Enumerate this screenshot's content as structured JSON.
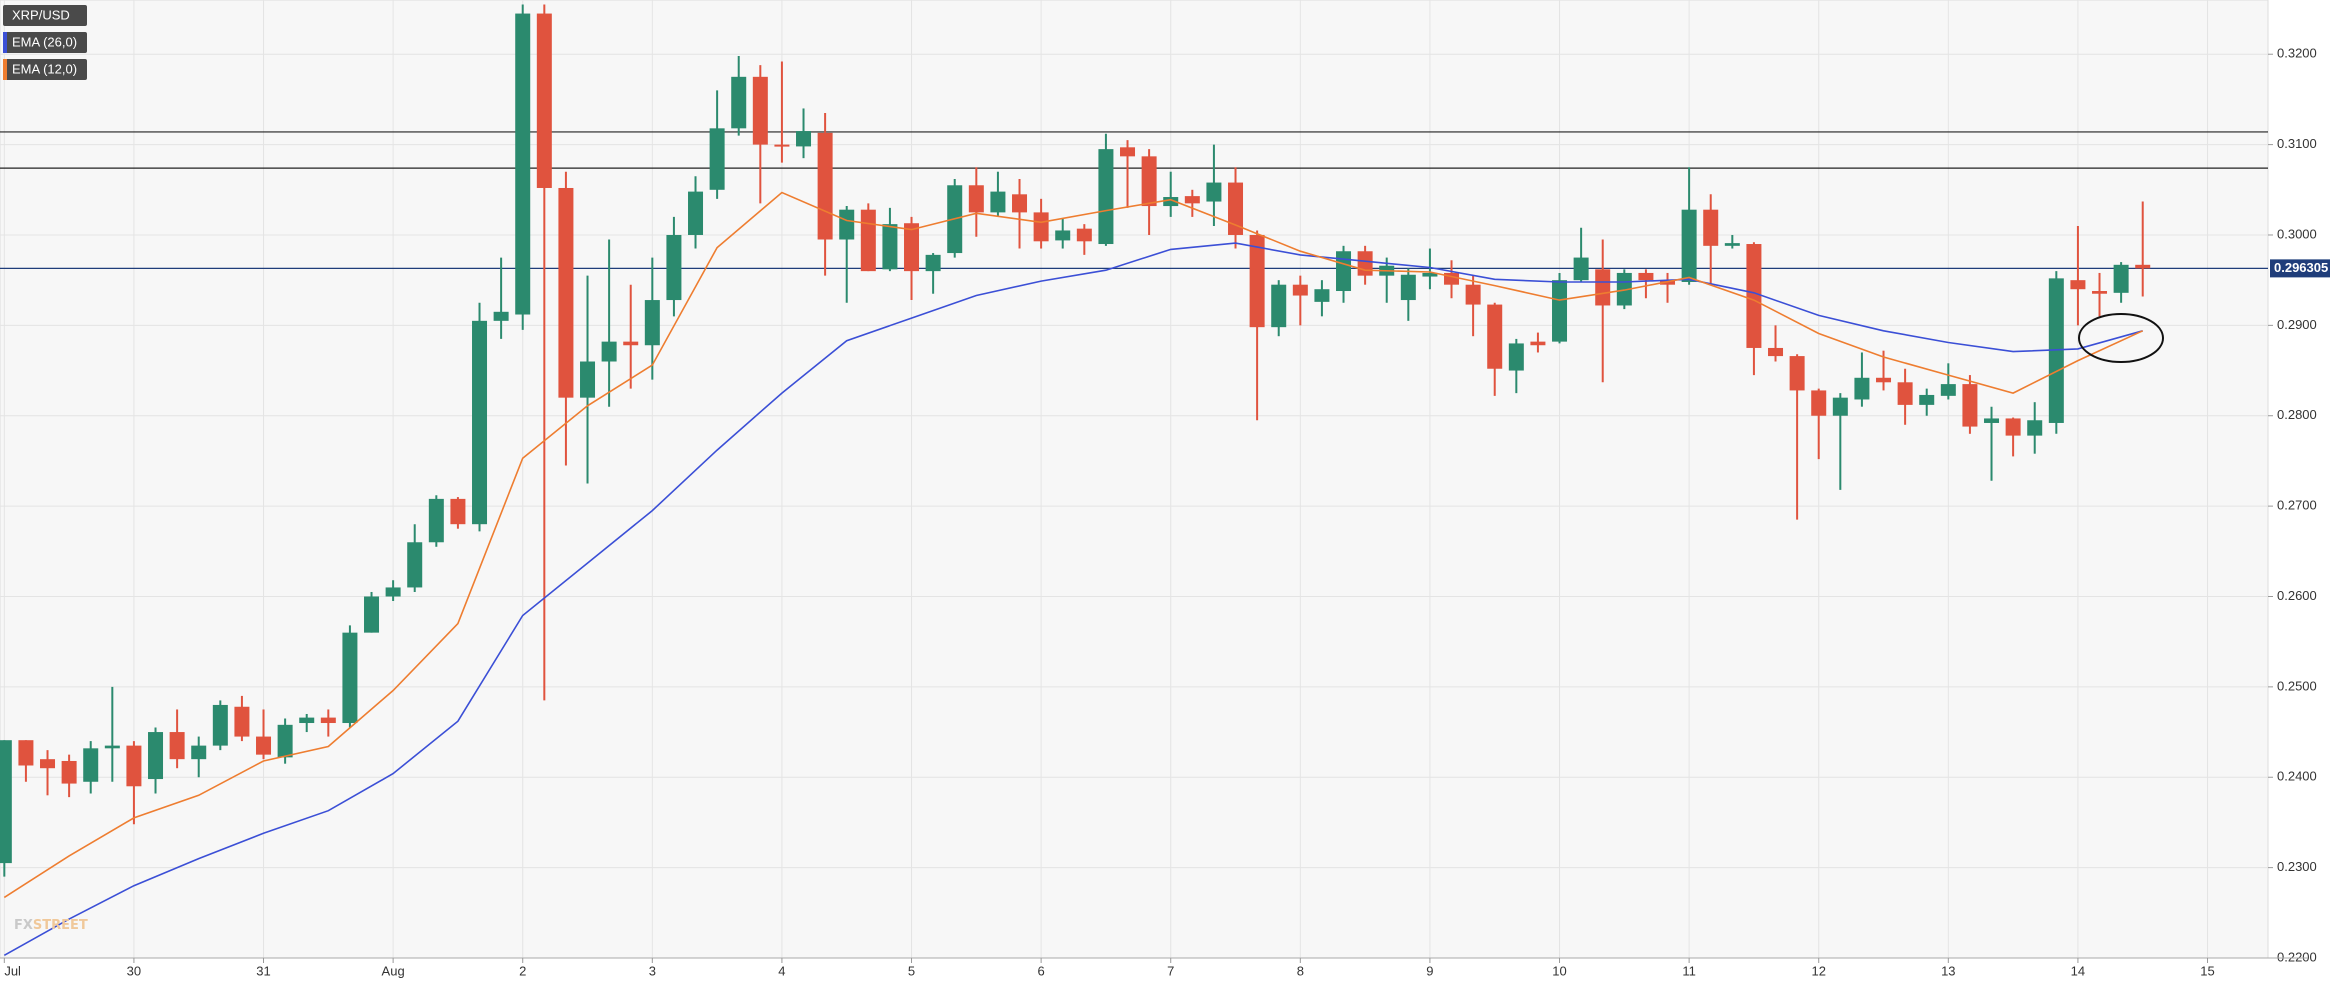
{
  "chart_data": {
    "type": "candlestick",
    "xlim": [
      -0.2,
      104.8
    ],
    "ylim": [
      0.22,
      0.326
    ],
    "xticks": [
      {
        "value": 0,
        "label": "Jul"
      },
      {
        "value": 6,
        "label": "30"
      },
      {
        "value": 12,
        "label": "31"
      },
      {
        "value": 18,
        "label": "Aug"
      },
      {
        "value": 24,
        "label": "2"
      },
      {
        "value": 30,
        "label": "3"
      },
      {
        "value": 36,
        "label": "4"
      },
      {
        "value": 42,
        "label": "5"
      },
      {
        "value": 48,
        "label": "6"
      },
      {
        "value": 54,
        "label": "7"
      },
      {
        "value": 60,
        "label": "8"
      },
      {
        "value": 66,
        "label": "9"
      },
      {
        "value": 72,
        "label": "10"
      },
      {
        "value": 78,
        "label": "11"
      },
      {
        "value": 84,
        "label": "12"
      },
      {
        "value": 90,
        "label": "13"
      },
      {
        "value": 96,
        "label": "14"
      },
      {
        "value": 102,
        "label": "15"
      }
    ],
    "yticks": [
      {
        "value": 0.22,
        "label": "0.2200"
      },
      {
        "value": 0.23,
        "label": "0.2300"
      },
      {
        "value": 0.24,
        "label": "0.2400"
      },
      {
        "value": 0.25,
        "label": "0.2500"
      },
      {
        "value": 0.26,
        "label": "0.2600"
      },
      {
        "value": 0.27,
        "label": "0.2700"
      },
      {
        "value": 0.28,
        "label": "0.2800"
      },
      {
        "value": 0.29,
        "label": "0.2900"
      },
      {
        "value": 0.3,
        "label": "0.3000"
      },
      {
        "value": 0.31,
        "label": "0.3100"
      },
      {
        "value": 0.32,
        "label": "0.3200"
      }
    ],
    "grid": true,
    "hlines": [
      {
        "value": 0.3114,
        "color": "#222222"
      },
      {
        "value": 0.3074,
        "color": "#222222"
      }
    ],
    "last_price": 0.296305,
    "last_price_color": "#1f3d7a",
    "logo": [
      "FX",
      "STREET"
    ],
    "series": [
      {
        "name": "XRP/USD",
        "type": "candlestick",
        "up_color": "#2b8a6e",
        "down_color": "#e0533e",
        "open": [
          0.2305,
          0.2441,
          0.242,
          0.2418,
          0.2395,
          0.2432,
          0.2435,
          0.2398,
          0.245,
          0.242,
          0.2435,
          0.2478,
          0.2445,
          0.2422,
          0.246,
          0.2466,
          0.246,
          0.256,
          0.26,
          0.261,
          0.266,
          0.2708,
          0.268,
          0.2905,
          0.2912,
          0.3245,
          0.3052,
          0.282,
          0.286,
          0.2882,
          0.2878,
          0.2928,
          0.3,
          0.305,
          0.3118,
          0.3175,
          0.31,
          0.3098,
          0.3113,
          0.2995,
          0.3028,
          0.2962,
          0.3013,
          0.296,
          0.298,
          0.3055,
          0.3025,
          0.3045,
          0.3025,
          0.2994,
          0.3007,
          0.299,
          0.3097,
          0.3087,
          0.3032,
          0.3043,
          0.3037,
          0.3058,
          0.3,
          0.2898,
          0.2945,
          0.2926,
          0.2938,
          0.2982,
          0.2955,
          0.2928,
          0.2954,
          0.2958,
          0.2945,
          0.2923,
          0.285,
          0.2882,
          0.2882,
          0.295,
          0.2962,
          0.2922,
          0.2958,
          0.295,
          0.2948,
          0.3028,
          0.2988,
          0.299,
          0.2875,
          0.2866,
          0.2828,
          0.28,
          0.2818,
          0.2842,
          0.2837,
          0.2812,
          0.2822,
          0.2835,
          0.2792,
          0.2797,
          0.2778,
          0.2792,
          0.295,
          0.2938,
          0.2936,
          0.2967
        ],
        "high": [
          0.2441,
          0.2441,
          0.243,
          0.2425,
          0.244,
          0.25,
          0.244,
          0.2455,
          0.2475,
          0.2445,
          0.2485,
          0.249,
          0.2475,
          0.2465,
          0.247,
          0.2475,
          0.2568,
          0.2605,
          0.2618,
          0.268,
          0.2712,
          0.271,
          0.2925,
          0.2975,
          0.3255,
          0.3255,
          0.307,
          0.2955,
          0.2995,
          0.2945,
          0.2975,
          0.302,
          0.3065,
          0.316,
          0.3198,
          0.3188,
          0.3192,
          0.314,
          0.3135,
          0.3032,
          0.3035,
          0.303,
          0.302,
          0.298,
          0.3062,
          0.3075,
          0.307,
          0.3062,
          0.304,
          0.3018,
          0.3012,
          0.3112,
          0.3105,
          0.3095,
          0.307,
          0.305,
          0.31,
          0.3075,
          0.3005,
          0.295,
          0.2955,
          0.295,
          0.2988,
          0.2988,
          0.2975,
          0.2963,
          0.2985,
          0.2972,
          0.2955,
          0.2925,
          0.2885,
          0.2892,
          0.2958,
          0.3008,
          0.2995,
          0.2962,
          0.2962,
          0.2958,
          0.3075,
          0.3045,
          0.3,
          0.2992,
          0.29,
          0.2868,
          0.283,
          0.2825,
          0.287,
          0.2872,
          0.2852,
          0.283,
          0.2858,
          0.2845,
          0.281,
          0.2798,
          0.2815,
          0.296,
          0.301,
          0.2958,
          0.297,
          0.3037
        ],
        "low": [
          0.229,
          0.2395,
          0.238,
          0.2378,
          0.2382,
          0.2395,
          0.2348,
          0.2382,
          0.241,
          0.24,
          0.243,
          0.244,
          0.242,
          0.2415,
          0.245,
          0.2445,
          0.2455,
          0.256,
          0.2595,
          0.2605,
          0.2655,
          0.2675,
          0.2672,
          0.2885,
          0.2895,
          0.2485,
          0.2745,
          0.2725,
          0.281,
          0.283,
          0.284,
          0.291,
          0.2985,
          0.304,
          0.311,
          0.3035,
          0.308,
          0.3085,
          0.2955,
          0.2925,
          0.296,
          0.296,
          0.2928,
          0.2935,
          0.2975,
          0.2998,
          0.302,
          0.2985,
          0.2985,
          0.2985,
          0.2978,
          0.2988,
          0.303,
          0.3,
          0.302,
          0.302,
          0.301,
          0.2985,
          0.2795,
          0.2888,
          0.29,
          0.291,
          0.2925,
          0.2945,
          0.2925,
          0.2905,
          0.294,
          0.293,
          0.2888,
          0.2822,
          0.2825,
          0.287,
          0.288,
          0.2948,
          0.2837,
          0.2918,
          0.293,
          0.2925,
          0.2945,
          0.2945,
          0.2985,
          0.2845,
          0.286,
          0.2685,
          0.2752,
          0.2718,
          0.281,
          0.2828,
          0.279,
          0.28,
          0.2818,
          0.278,
          0.2728,
          0.2755,
          0.2758,
          0.278,
          0.29,
          0.291,
          0.2925,
          0.2932
        ],
        "close": [
          0.2441,
          0.2413,
          0.241,
          0.2393,
          0.2432,
          0.2435,
          0.239,
          0.245,
          0.242,
          0.2435,
          0.248,
          0.2445,
          0.2425,
          0.2458,
          0.2466,
          0.246,
          0.256,
          0.26,
          0.261,
          0.266,
          0.2708,
          0.268,
          0.2905,
          0.2915,
          0.3245,
          0.3052,
          0.282,
          0.286,
          0.2882,
          0.2878,
          0.2928,
          0.3,
          0.3048,
          0.3118,
          0.3175,
          0.31,
          0.3098,
          0.3115,
          0.2995,
          0.3028,
          0.296,
          0.3012,
          0.296,
          0.2978,
          0.3055,
          0.3025,
          0.3048,
          0.3025,
          0.2993,
          0.3005,
          0.2993,
          0.3095,
          0.3087,
          0.3032,
          0.3042,
          0.3035,
          0.3058,
          0.3,
          0.2898,
          0.2945,
          0.2933,
          0.294,
          0.2982,
          0.2955,
          0.2966,
          0.2956,
          0.2958,
          0.2945,
          0.2923,
          0.2852,
          0.288,
          0.2878,
          0.295,
          0.2975,
          0.2922,
          0.2958,
          0.295,
          0.2945,
          0.3028,
          0.2988,
          0.2991,
          0.2875,
          0.2866,
          0.2828,
          0.28,
          0.282,
          0.2842,
          0.2837,
          0.2812,
          0.2823,
          0.2835,
          0.2788,
          0.2797,
          0.2778,
          0.2795,
          0.2952,
          0.294,
          0.2935,
          0.2967,
          0.2963
        ]
      },
      {
        "name": "EMA (26,0)",
        "type": "line",
        "color": "#3b4fd6",
        "x": [
          0,
          3,
          6,
          9,
          12,
          15,
          18,
          21,
          24,
          27,
          30,
          33,
          36,
          39,
          42,
          45,
          48,
          51,
          54,
          57,
          60,
          63,
          66,
          69,
          72,
          75,
          78,
          81,
          84,
          87,
          90,
          93,
          96,
          99
        ],
        "values": [
          0.2203,
          0.2243,
          0.228,
          0.231,
          0.2338,
          0.2363,
          0.2404,
          0.2462,
          0.2579,
          0.2637,
          0.2695,
          0.2762,
          0.2825,
          0.2883,
          0.2908,
          0.2933,
          0.2949,
          0.2961,
          0.2984,
          0.2991,
          0.2978,
          0.2971,
          0.2964,
          0.2951,
          0.2948,
          0.2948,
          0.2951,
          0.2936,
          0.2911,
          0.2894,
          0.2881,
          0.2871,
          0.2874,
          0.2894
        ]
      },
      {
        "name": "EMA (12,0)",
        "type": "line",
        "color": "#ee7d30",
        "x": [
          0,
          3,
          6,
          9,
          12,
          15,
          18,
          21,
          24,
          27,
          30,
          33,
          36,
          39,
          42,
          45,
          48,
          51,
          54,
          57,
          60,
          63,
          66,
          69,
          72,
          75,
          78,
          81,
          84,
          87,
          90,
          93,
          96,
          99
        ],
        "values": [
          0.2267,
          0.2313,
          0.2355,
          0.238,
          0.2418,
          0.2434,
          0.2496,
          0.257,
          0.2753,
          0.2811,
          0.2856,
          0.2986,
          0.3047,
          0.3016,
          0.3006,
          0.3024,
          0.3014,
          0.3027,
          0.3039,
          0.3011,
          0.2982,
          0.2961,
          0.2959,
          0.2944,
          0.2928,
          0.2939,
          0.2953,
          0.2928,
          0.2891,
          0.2865,
          0.2845,
          0.2825,
          0.2861,
          0.2894
        ]
      }
    ]
  }
}
